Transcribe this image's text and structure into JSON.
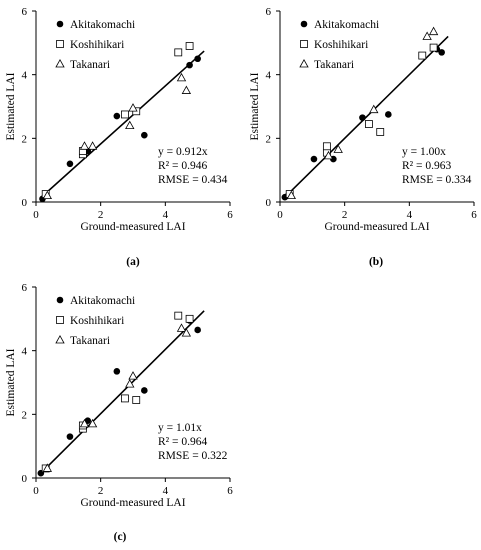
{
  "panels": [
    {
      "panel_label": "(a)",
      "chart_data": {
        "type": "scatter",
        "xlabel": "Ground-measured LAI",
        "ylabel": "Estimated LAI",
        "xlim": [
          0,
          6
        ],
        "ylim": [
          0,
          6
        ],
        "xticks": [
          "0",
          "2",
          "4",
          "6"
        ],
        "yticks": [
          "0",
          "2",
          "4",
          "6"
        ],
        "grid": false,
        "legend_position": "top-left",
        "series": [
          {
            "name": "Akitakomachi",
            "marker": "filled-circle",
            "points": [
              [
                0.2,
                0.1
              ],
              [
                1.05,
                1.2
              ],
              [
                1.6,
                1.6
              ],
              [
                2.5,
                2.7
              ],
              [
                3.35,
                2.1
              ],
              [
                4.75,
                4.3
              ],
              [
                5.0,
                4.5
              ]
            ]
          },
          {
            "name": "Koshihikari",
            "marker": "open-square",
            "points": [
              [
                0.3,
                0.25
              ],
              [
                1.45,
                1.5
              ],
              [
                1.45,
                1.6
              ],
              [
                2.75,
                2.75
              ],
              [
                3.1,
                2.85
              ],
              [
                4.4,
                4.7
              ],
              [
                4.75,
                4.9
              ]
            ]
          },
          {
            "name": "Takanari",
            "marker": "open-triangle",
            "points": [
              [
                0.35,
                0.2
              ],
              [
                1.5,
                1.75
              ],
              [
                1.75,
                1.75
              ],
              [
                2.9,
                2.4
              ],
              [
                3.0,
                2.95
              ],
              [
                4.5,
                3.9
              ],
              [
                4.65,
                3.5
              ]
            ]
          }
        ],
        "fit_slope": 0.912,
        "annotations": [
          "y = 0.912x",
          "R² = 0.946",
          "RMSE = 0.434"
        ]
      }
    },
    {
      "panel_label": "(b)",
      "chart_data": {
        "type": "scatter",
        "xlabel": "Ground-measured LAI",
        "ylabel": "Estimated LAI",
        "xlim": [
          0,
          6
        ],
        "ylim": [
          0,
          6
        ],
        "xticks": [
          "0",
          "2",
          "4",
          "6"
        ],
        "yticks": [
          "0",
          "2",
          "4",
          "6"
        ],
        "grid": false,
        "legend_position": "top-left",
        "series": [
          {
            "name": "Akitakomachi",
            "marker": "filled-circle",
            "points": [
              [
                0.15,
                0.15
              ],
              [
                0.25,
                0.2
              ],
              [
                1.05,
                1.35
              ],
              [
                1.65,
                1.35
              ],
              [
                2.55,
                2.65
              ],
              [
                3.35,
                2.75
              ],
              [
                4.85,
                4.8
              ],
              [
                5.0,
                4.7
              ]
            ]
          },
          {
            "name": "Koshihikari",
            "marker": "open-square",
            "points": [
              [
                0.3,
                0.25
              ],
              [
                1.45,
                1.55
              ],
              [
                1.45,
                1.75
              ],
              [
                2.75,
                2.45
              ],
              [
                3.1,
                2.2
              ],
              [
                4.4,
                4.6
              ],
              [
                4.75,
                4.85
              ]
            ]
          },
          {
            "name": "Takanari",
            "marker": "open-triangle",
            "points": [
              [
                0.35,
                0.2
              ],
              [
                1.5,
                1.45
              ],
              [
                1.8,
                1.65
              ],
              [
                2.9,
                2.9
              ],
              [
                4.55,
                5.2
              ],
              [
                4.75,
                5.35
              ]
            ]
          }
        ],
        "fit_slope": 1.0,
        "annotations": [
          "y = 1.00x",
          "R² = 0.963",
          "RMSE = 0.334"
        ]
      }
    },
    {
      "panel_label": "(c)",
      "chart_data": {
        "type": "scatter",
        "xlabel": "Ground-measured LAI",
        "ylabel": "Estimated LAI",
        "xlim": [
          0,
          6
        ],
        "ylim": [
          0,
          6
        ],
        "xticks": [
          "0",
          "2",
          "4",
          "6"
        ],
        "yticks": [
          "0",
          "2",
          "4",
          "6"
        ],
        "grid": false,
        "legend_position": "top-left",
        "series": [
          {
            "name": "Akitakomachi",
            "marker": "filled-circle",
            "points": [
              [
                0.15,
                0.15
              ],
              [
                1.05,
                1.3
              ],
              [
                1.6,
                1.8
              ],
              [
                2.5,
                3.35
              ],
              [
                3.35,
                2.75
              ],
              [
                4.75,
                4.95
              ],
              [
                5.0,
                4.65
              ]
            ]
          },
          {
            "name": "Koshihikari",
            "marker": "open-square",
            "points": [
              [
                0.3,
                0.3
              ],
              [
                1.45,
                1.55
              ],
              [
                1.45,
                1.65
              ],
              [
                2.75,
                2.5
              ],
              [
                3.1,
                2.45
              ],
              [
                4.4,
                5.1
              ],
              [
                4.75,
                5.0
              ]
            ]
          },
          {
            "name": "Takanari",
            "marker": "open-triangle",
            "points": [
              [
                0.35,
                0.3
              ],
              [
                1.5,
                1.7
              ],
              [
                1.75,
                1.7
              ],
              [
                2.9,
                2.95
              ],
              [
                3.0,
                3.2
              ],
              [
                4.5,
                4.7
              ],
              [
                4.65,
                4.55
              ]
            ]
          }
        ],
        "fit_slope": 1.01,
        "annotations": [
          "y = 1.01x",
          "R² = 0.964",
          "RMSE = 0.322"
        ]
      }
    }
  ]
}
